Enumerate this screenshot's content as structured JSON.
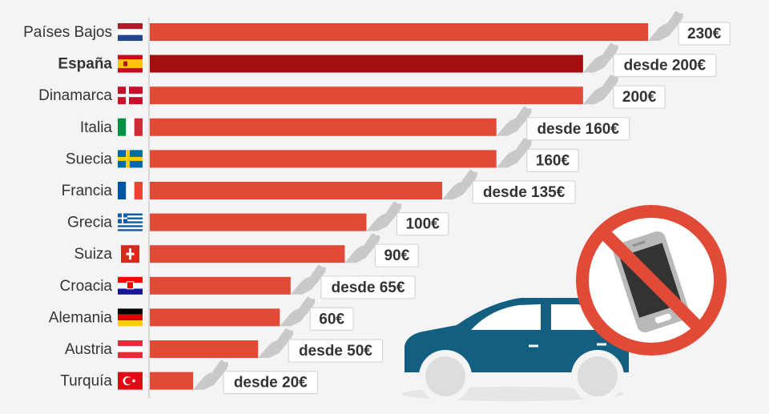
{
  "chart_data": {
    "type": "bar",
    "orientation": "horizontal",
    "categories": [
      "Países Bajos",
      "España",
      "Dinamarca",
      "Italia",
      "Suecia",
      "Francia",
      "Grecia",
      "Suiza",
      "Croacia",
      "Alemania",
      "Austria",
      "Turquía"
    ],
    "values": [
      230,
      200,
      200,
      160,
      160,
      135,
      100,
      90,
      65,
      60,
      50,
      20
    ],
    "value_labels": [
      "230€",
      "desde 200€",
      "200€",
      "desde 160€",
      "160€",
      "desde 135€",
      "100€",
      "90€",
      "desde 65€",
      "60€",
      "desde 50€",
      "desde 20€"
    ],
    "highlight": "España",
    "xlim": [
      0,
      230
    ],
    "grid": false,
    "legend": "none",
    "colors": {
      "bar": "#e04a37",
      "highlight": "#a50f12",
      "axis": "#cfcfcf",
      "car": "#135f82",
      "sign": "#e04a37"
    },
    "flags": [
      "netherlands-flag",
      "spain-flag",
      "denmark-flag",
      "italy-flag",
      "sweden-flag",
      "france-flag",
      "greece-flag",
      "switzerland-flag",
      "croatia-flag",
      "germany-flag",
      "austria-flag",
      "turkey-flag"
    ]
  },
  "decorations": {
    "illustration": [
      "car-icon",
      "phone-icon",
      "prohibition-sign-icon",
      "hand-phone-icon"
    ]
  }
}
